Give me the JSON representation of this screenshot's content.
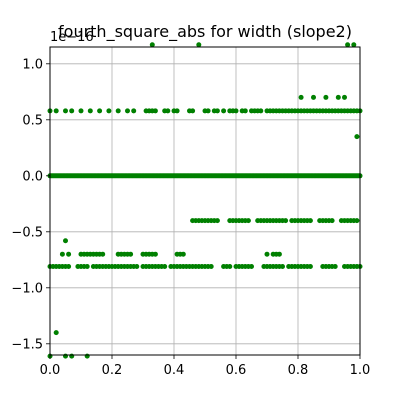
{
  "chart_data": {
    "type": "scatter",
    "title": "fourth_square_abs for width (slope2)",
    "offset_text": "1e−16",
    "xlabel": "",
    "ylabel": "",
    "xlim": [
      0.0,
      1.0
    ],
    "ylim": [
      -1.6,
      1.15
    ],
    "x_ticks": [
      0.0,
      0.2,
      0.4,
      0.6,
      0.8,
      1.0
    ],
    "x_tick_labels": [
      "0.0",
      "0.2",
      "0.4",
      "0.6",
      "0.8",
      "1.0"
    ],
    "y_ticks": [
      -1.5,
      -1.0,
      -0.5,
      0.0,
      0.5,
      1.0
    ],
    "y_tick_labels": [
      "−1.5",
      "−1.0",
      "−0.5",
      "0.0",
      "0.5",
      "1.0"
    ],
    "grid": true,
    "marker_color": "#008000",
    "series": [
      {
        "values_y": 1.17,
        "x": [
          0.33,
          0.48,
          0.96,
          0.98
        ]
      },
      {
        "values_y": 0.7,
        "x": [
          0.81,
          0.85,
          0.89,
          0.93,
          0.95
        ]
      },
      {
        "values_y": 0.58,
        "x": [
          0.0,
          0.02,
          0.05,
          0.07,
          0.1,
          0.13,
          0.16,
          0.19,
          0.22,
          0.25,
          0.27,
          0.31,
          0.32,
          0.33,
          0.34,
          0.37,
          0.38,
          0.4,
          0.41,
          0.45,
          0.46,
          0.5,
          0.51,
          0.53,
          0.54,
          0.56,
          0.58,
          0.59,
          0.6,
          0.62,
          0.63,
          0.65,
          0.66,
          0.67,
          0.68,
          0.7,
          0.71,
          0.72,
          0.73,
          0.74,
          0.75,
          0.76,
          0.77,
          0.78,
          0.79,
          0.8,
          0.81,
          0.82,
          0.83,
          0.84,
          0.85,
          0.86,
          0.87,
          0.88,
          0.89,
          0.9,
          0.91,
          0.92,
          0.93,
          0.94,
          0.95,
          0.96,
          0.97,
          0.98,
          0.99,
          1.0
        ]
      },
      {
        "values_y": 0.35,
        "x": [
          0.99
        ]
      },
      {
        "values_y": 0.0,
        "x_range": [
          0.0,
          1.0
        ],
        "x_step": 0.005
      },
      {
        "values_y": -0.4,
        "x": [
          0.46,
          0.47,
          0.48,
          0.49,
          0.5,
          0.51,
          0.52,
          0.53,
          0.54,
          0.58,
          0.59,
          0.6,
          0.61,
          0.62,
          0.63,
          0.64,
          0.67,
          0.68,
          0.69,
          0.7,
          0.71,
          0.72,
          0.73,
          0.74,
          0.75,
          0.76,
          0.78,
          0.79,
          0.8,
          0.81,
          0.82,
          0.83,
          0.84,
          0.87,
          0.88,
          0.89,
          0.9,
          0.91,
          0.94,
          0.95,
          0.96,
          0.97,
          0.98,
          0.99
        ]
      },
      {
        "values_y": -0.58,
        "x": [
          0.05
        ]
      },
      {
        "values_y": -0.7,
        "x": [
          0.04,
          0.06,
          0.1,
          0.11,
          0.12,
          0.13,
          0.14,
          0.15,
          0.16,
          0.17,
          0.22,
          0.23,
          0.24,
          0.25,
          0.26,
          0.3,
          0.31,
          0.32,
          0.33,
          0.34,
          0.41,
          0.42,
          0.43,
          0.7,
          0.72,
          0.73,
          0.74
        ]
      },
      {
        "values_y": -0.81,
        "x": [
          0.0,
          0.01,
          0.02,
          0.03,
          0.04,
          0.05,
          0.06,
          0.09,
          0.1,
          0.11,
          0.12,
          0.14,
          0.15,
          0.16,
          0.17,
          0.18,
          0.19,
          0.2,
          0.21,
          0.22,
          0.23,
          0.24,
          0.25,
          0.26,
          0.27,
          0.28,
          0.3,
          0.31,
          0.32,
          0.33,
          0.34,
          0.35,
          0.36,
          0.37,
          0.39,
          0.4,
          0.41,
          0.42,
          0.43,
          0.44,
          0.45,
          0.46,
          0.47,
          0.48,
          0.49,
          0.5,
          0.51,
          0.52,
          0.56,
          0.57,
          0.58,
          0.6,
          0.61,
          0.62,
          0.63,
          0.64,
          0.65,
          0.69,
          0.7,
          0.71,
          0.72,
          0.73,
          0.74,
          0.75,
          0.77,
          0.78,
          0.79,
          0.8,
          0.81,
          0.82,
          0.83,
          0.84,
          0.88,
          0.89,
          0.9,
          0.91,
          0.92,
          0.95,
          0.96,
          0.97,
          0.98,
          0.99,
          1.0
        ]
      },
      {
        "values_y": -1.4,
        "x": [
          0.02
        ]
      },
      {
        "values_y": -1.61,
        "x": [
          0.0,
          0.05,
          0.07,
          0.12
        ]
      }
    ]
  }
}
